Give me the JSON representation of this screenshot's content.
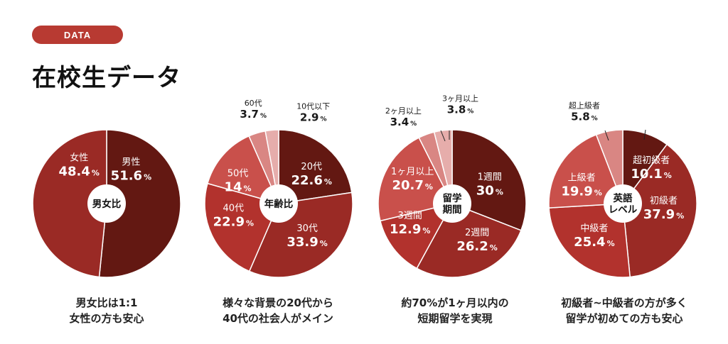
{
  "header": {
    "badge": "DATA",
    "title": "在校生データ"
  },
  "colors": {
    "accent": "#b83a32"
  },
  "chart_data": [
    {
      "type": "pie",
      "center_label": [
        "男女比"
      ],
      "slices": [
        {
          "name": "男性",
          "value": 51.6,
          "value_text": "51.6",
          "unit": "%",
          "color": "#631812"
        },
        {
          "name": "女性",
          "value": 48.4,
          "value_text": "48.4",
          "unit": "%",
          "color": "#9a2a25"
        }
      ],
      "caption": [
        "男女比は1:1",
        "女性の方も安心"
      ]
    },
    {
      "type": "pie",
      "center_label": [
        "年齢比"
      ],
      "slices": [
        {
          "name": "20代",
          "value": 22.6,
          "value_text": "22.6",
          "unit": "%",
          "color": "#631812"
        },
        {
          "name": "30代",
          "value": 33.9,
          "value_text": "33.9",
          "unit": "%",
          "color": "#9a2a25"
        },
        {
          "name": "40代",
          "value": 22.9,
          "value_text": "22.9",
          "unit": "%",
          "color": "#b2322d"
        },
        {
          "name": "50代",
          "value": 14,
          "value_text": "14",
          "unit": "%",
          "color": "#c9504b"
        },
        {
          "name": "60代",
          "value": 3.7,
          "value_text": "3.7",
          "unit": "%",
          "color": "#d98683"
        },
        {
          "name": "10代以下",
          "value": 2.9,
          "value_text": "2.9",
          "unit": "%",
          "color": "#e6adab"
        }
      ],
      "caption": [
        "様々な背景の20代から",
        "40代の社会人がメイン"
      ]
    },
    {
      "type": "pie",
      "center_label": [
        "留学",
        "期間"
      ],
      "slices": [
        {
          "name": "1週間",
          "value": 30,
          "value_text": "30",
          "unit": "%",
          "color": "#631812"
        },
        {
          "name": "2週間",
          "value": 26.2,
          "value_text": "26.2",
          "unit": "%",
          "color": "#9a2a25"
        },
        {
          "name": "3週間",
          "value": 12.9,
          "value_text": "12.9",
          "unit": "%",
          "color": "#b2322d"
        },
        {
          "name": "1ヶ月以上",
          "value": 20.7,
          "value_text": "20.7",
          "unit": "%",
          "color": "#c9504b"
        },
        {
          "name": "2ヶ月以上",
          "value": 3.4,
          "value_text": "3.4",
          "unit": "%",
          "color": "#d98683"
        },
        {
          "name": "3ヶ月以上",
          "value": 3.8,
          "value_text": "3.8",
          "unit": "%",
          "color": "#e6adab"
        }
      ],
      "caption": [
        "約70%が1ヶ月以内の",
        "短期留学を実現"
      ]
    },
    {
      "type": "pie",
      "center_label": [
        "英語",
        "レベル"
      ],
      "slices": [
        {
          "name": "超初級者",
          "value": 10.1,
          "value_text": "10.1",
          "unit": "%",
          "color": "#631812"
        },
        {
          "name": "初級者",
          "value": 37.9,
          "value_text": "37.9",
          "unit": "%",
          "color": "#9a2a25"
        },
        {
          "name": "中級者",
          "value": 25.4,
          "value_text": "25.4",
          "unit": "%",
          "color": "#b2322d"
        },
        {
          "name": "上級者",
          "value": 19.9,
          "value_text": "19.9",
          "unit": "%",
          "color": "#c9504b"
        },
        {
          "name": "超上級者",
          "value": 5.8,
          "value_text": "5.8",
          "unit": "%",
          "color": "#d98683"
        }
      ],
      "caption": [
        "初級者~中級者の方が多く",
        "留学が初めての方も安心"
      ]
    }
  ]
}
